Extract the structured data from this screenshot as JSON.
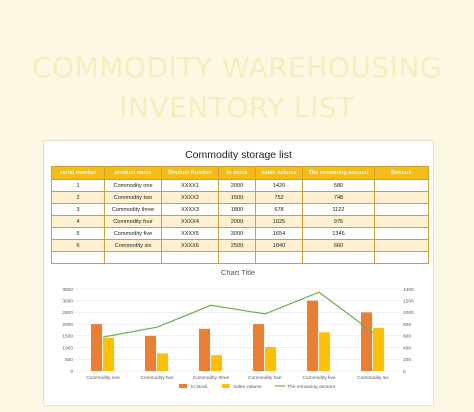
{
  "hero": {
    "line1": "COMMODITY WAREHOUSING",
    "line2": "INVENTORY LIST"
  },
  "table": {
    "title": "Commodity storage list",
    "headers": [
      "serial number",
      "product name",
      "Product Number",
      "In stock",
      "sales volume",
      "The remaining amount",
      "Remark"
    ],
    "rows": [
      [
        "1",
        "Commodity one",
        "XXXX1",
        "2000",
        "1420",
        "580",
        ""
      ],
      [
        "2",
        "Commodity two",
        "XXXX2",
        "1500",
        "752",
        "748",
        ""
      ],
      [
        "3",
        "Commodity three",
        "XXXX3",
        "1800",
        "678",
        "1122",
        ""
      ],
      [
        "4",
        "Commodity four",
        "XXXX4",
        "2000",
        "1025",
        "975",
        ""
      ],
      [
        "5",
        "Commodity five",
        "XXXX5",
        "3000",
        "1654",
        "1346",
        ""
      ],
      [
        "6",
        "Commodity six",
        "XXXX6",
        "2500",
        "1840",
        "660",
        ""
      ],
      [
        "",
        "",
        "",
        "",
        "",
        "",
        ""
      ]
    ]
  },
  "chart_data": {
    "type": "bar",
    "title": "Chart Title",
    "categories": [
      "Commodity one",
      "Commodity two",
      "Commodity three",
      "Commodity four",
      "Commodity five",
      "Commodity six"
    ],
    "series": [
      {
        "name": "In stock",
        "type": "bar",
        "axis": "left",
        "color": "#ed7d31",
        "values": [
          2000,
          1500,
          1800,
          2000,
          3000,
          2500
        ]
      },
      {
        "name": "sales volume",
        "type": "bar",
        "axis": "left",
        "color": "#ffc000",
        "values": [
          1420,
          752,
          678,
          1025,
          1654,
          1840
        ]
      },
      {
        "name": "The remaining amount",
        "type": "line",
        "axis": "right",
        "color": "#70ad47",
        "values": [
          580,
          748,
          1122,
          975,
          1346,
          660
        ]
      }
    ],
    "y_left": {
      "ylim": [
        0,
        3500
      ],
      "ticks": [
        "0",
        "500",
        "1000",
        "1500",
        "2000",
        "2500",
        "3000",
        "3500"
      ]
    },
    "y_right": {
      "ylim": [
        0,
        1400
      ],
      "ticks": [
        "0",
        "200",
        "400",
        "600",
        "800",
        "1000",
        "1200",
        "1400"
      ]
    },
    "grid": true,
    "legend": "bottom"
  }
}
